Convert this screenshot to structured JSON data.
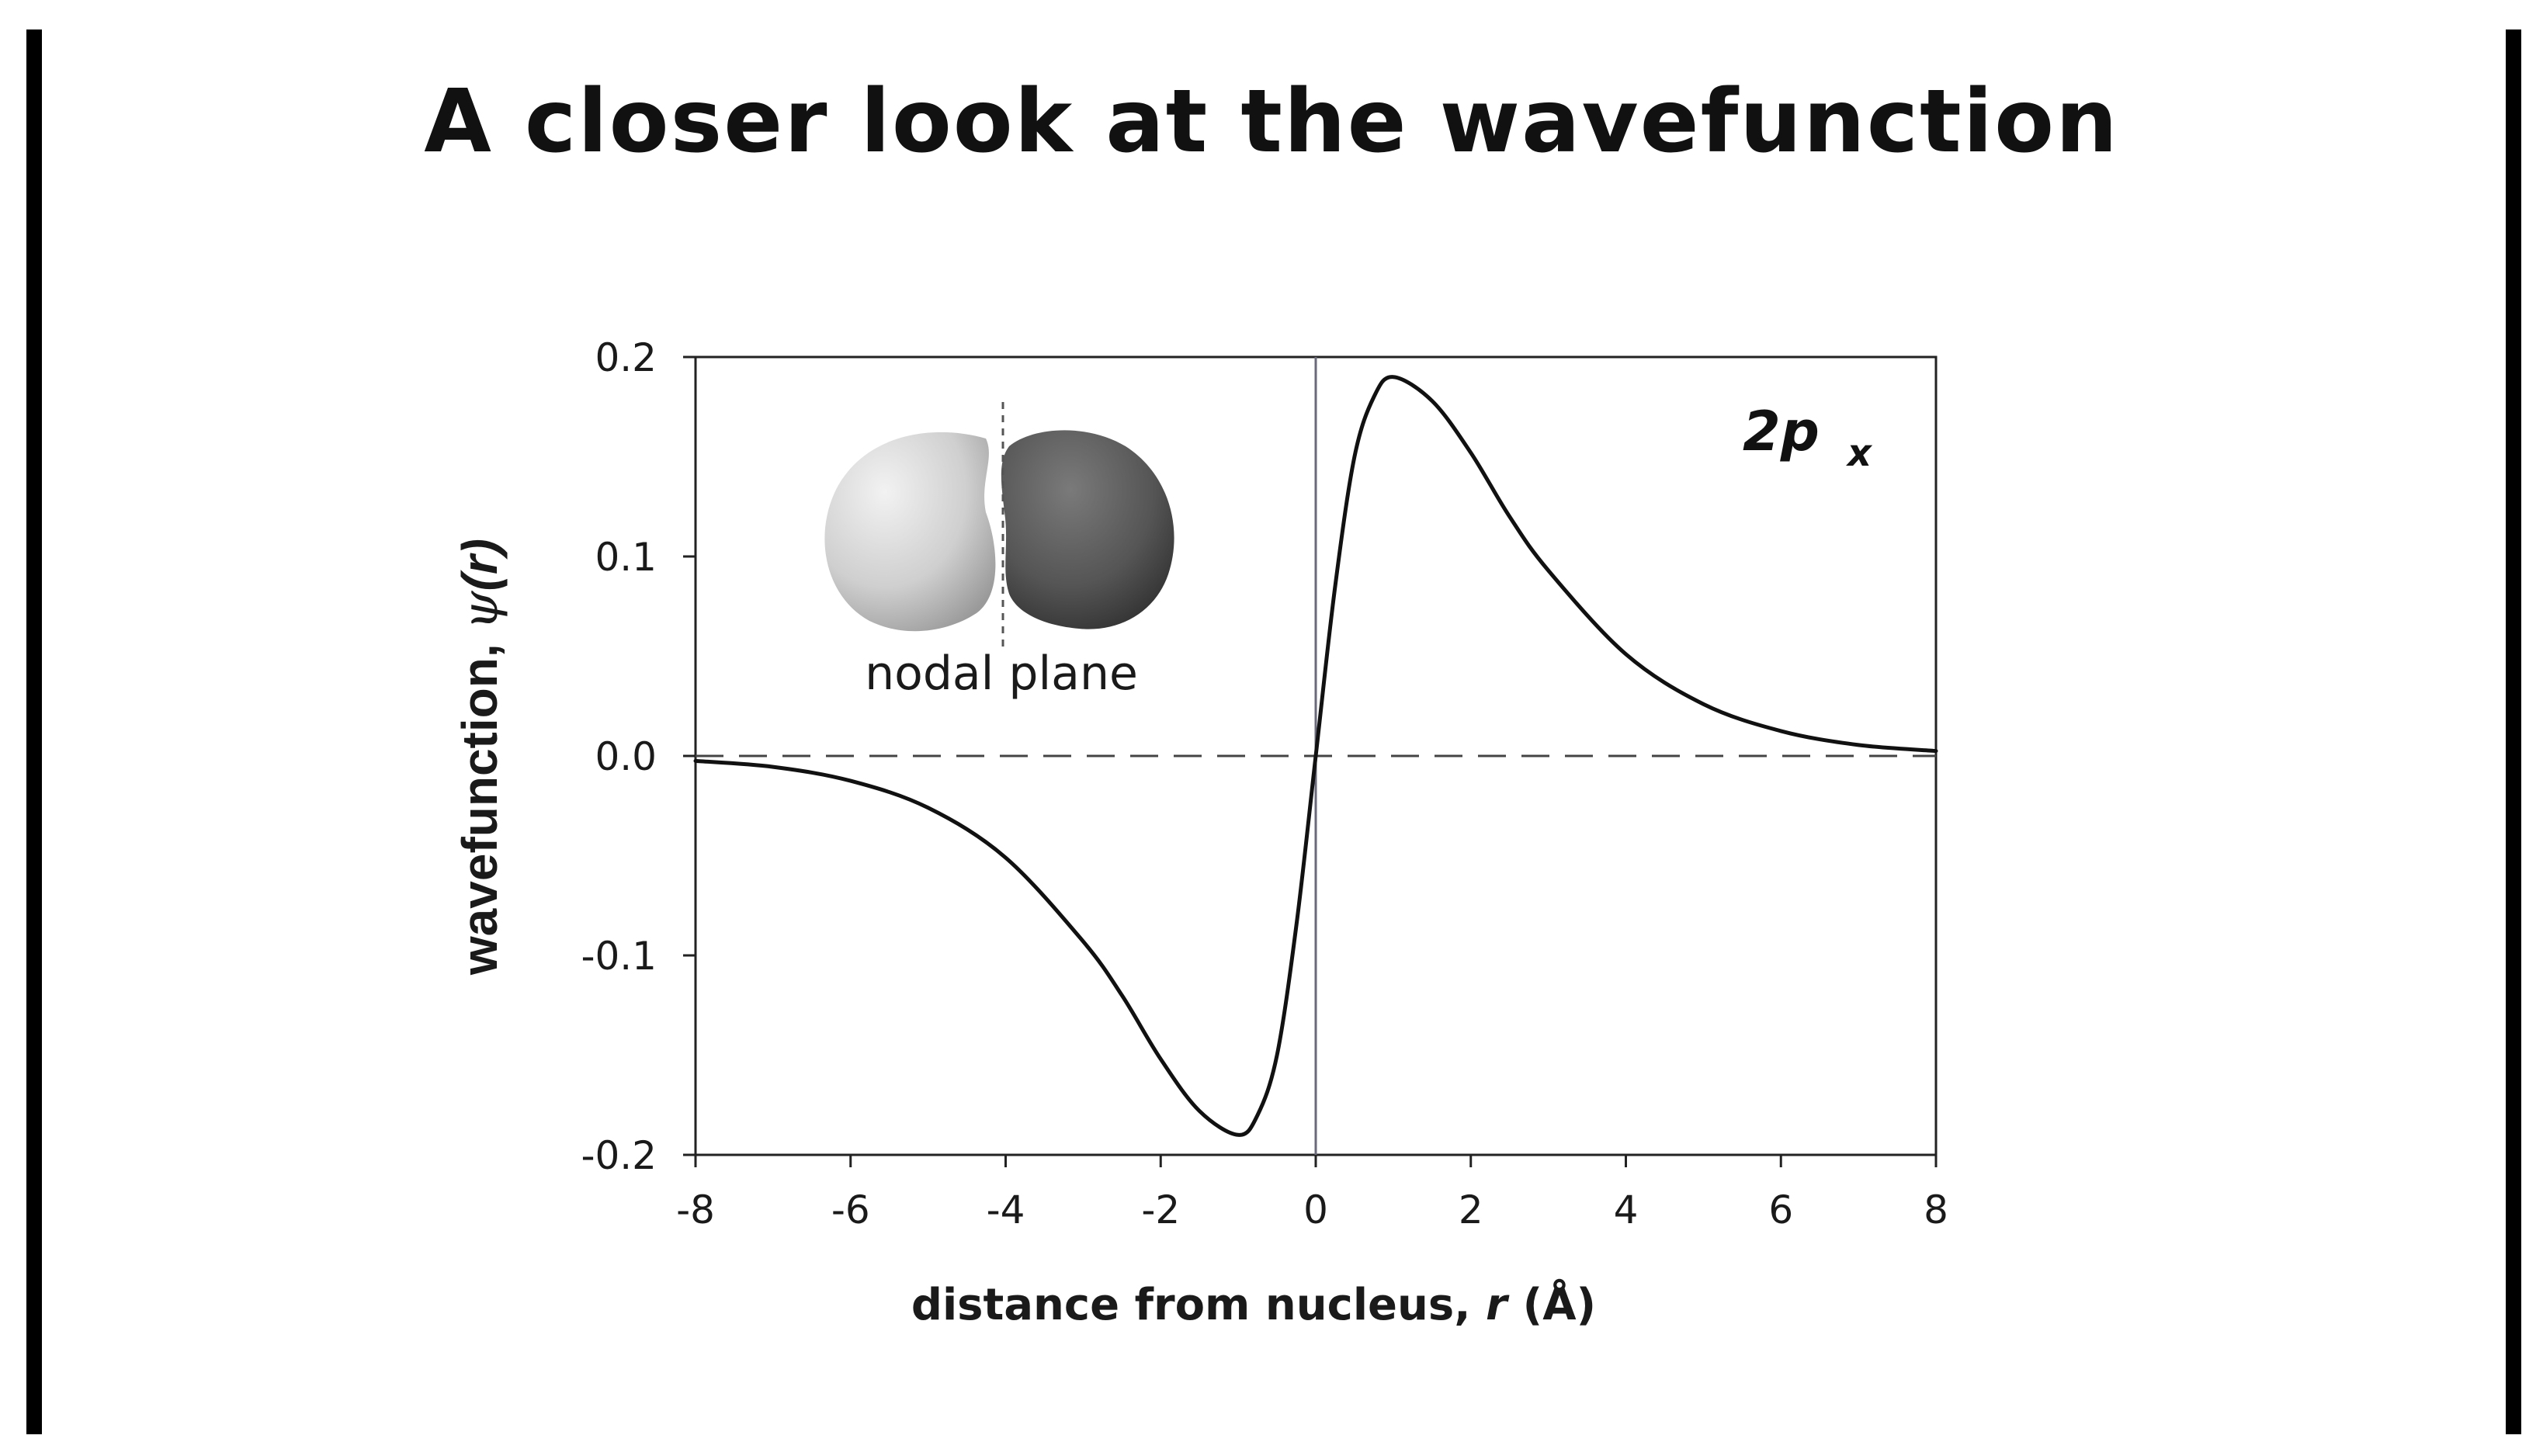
{
  "slide": {
    "title": "A closer look at the wavefunction"
  },
  "chart_data": {
    "type": "line",
    "xlabel": "distance from nucleus, r (Å)",
    "xlabel_prefix": "distance from nucleus, ",
    "xlabel_var": "r",
    "xlabel_unit": "(Å)",
    "ylabel": "wavefunction, ψ(r)",
    "ylabel_prefix": "wavefunction, ",
    "ylabel_func": "ψ",
    "ylabel_arg": "(r)",
    "xlim": [
      -8,
      8
    ],
    "ylim": [
      -0.2,
      0.2
    ],
    "x_ticks": [
      -8,
      -6,
      -4,
      -2,
      0,
      2,
      4,
      6,
      8
    ],
    "x_tick_labels": [
      "-8",
      "-6",
      "-4",
      "-2",
      "0",
      "2",
      "4",
      "6",
      "8"
    ],
    "y_ticks": [
      0.2,
      0.1,
      0.0,
      -0.1,
      -0.2
    ],
    "y_tick_labels": [
      "0.2",
      "0.1",
      "0.0",
      "-0.1",
      "-0.2"
    ],
    "grid": false,
    "series": [
      {
        "name": "2p x",
        "name_main": "2p",
        "name_sub": "x",
        "color": "#111111",
        "x": [
          -8,
          -7,
          -6,
          -5,
          -4,
          -3,
          -2.5,
          -2,
          -1.5,
          -1,
          -0.75,
          -0.5,
          -0.25,
          0,
          0.25,
          0.5,
          0.75,
          1,
          1.5,
          2,
          2.5,
          3,
          4,
          5,
          6,
          7,
          8
        ],
        "y": [
          -0.0025,
          -0.0055,
          -0.0125,
          -0.026,
          -0.051,
          -0.093,
          -0.12,
          -0.152,
          -0.178,
          -0.19,
          -0.18,
          -0.15,
          -0.085,
          0.0,
          0.085,
          0.15,
          0.18,
          0.19,
          0.178,
          0.152,
          0.12,
          0.093,
          0.051,
          0.026,
          0.0125,
          0.0055,
          0.0025
        ]
      }
    ],
    "annotations": {
      "orbital_label": "nodal plane"
    },
    "reference_lines": {
      "horizontal_zero": "dashed",
      "vertical_zero": "solid"
    },
    "colors": {
      "axis": "#222222",
      "zero_line": "#444444",
      "vertical_line": "#6a6a7a",
      "lobe_light": "#d9d9d9",
      "lobe_dark": "#555555"
    }
  }
}
